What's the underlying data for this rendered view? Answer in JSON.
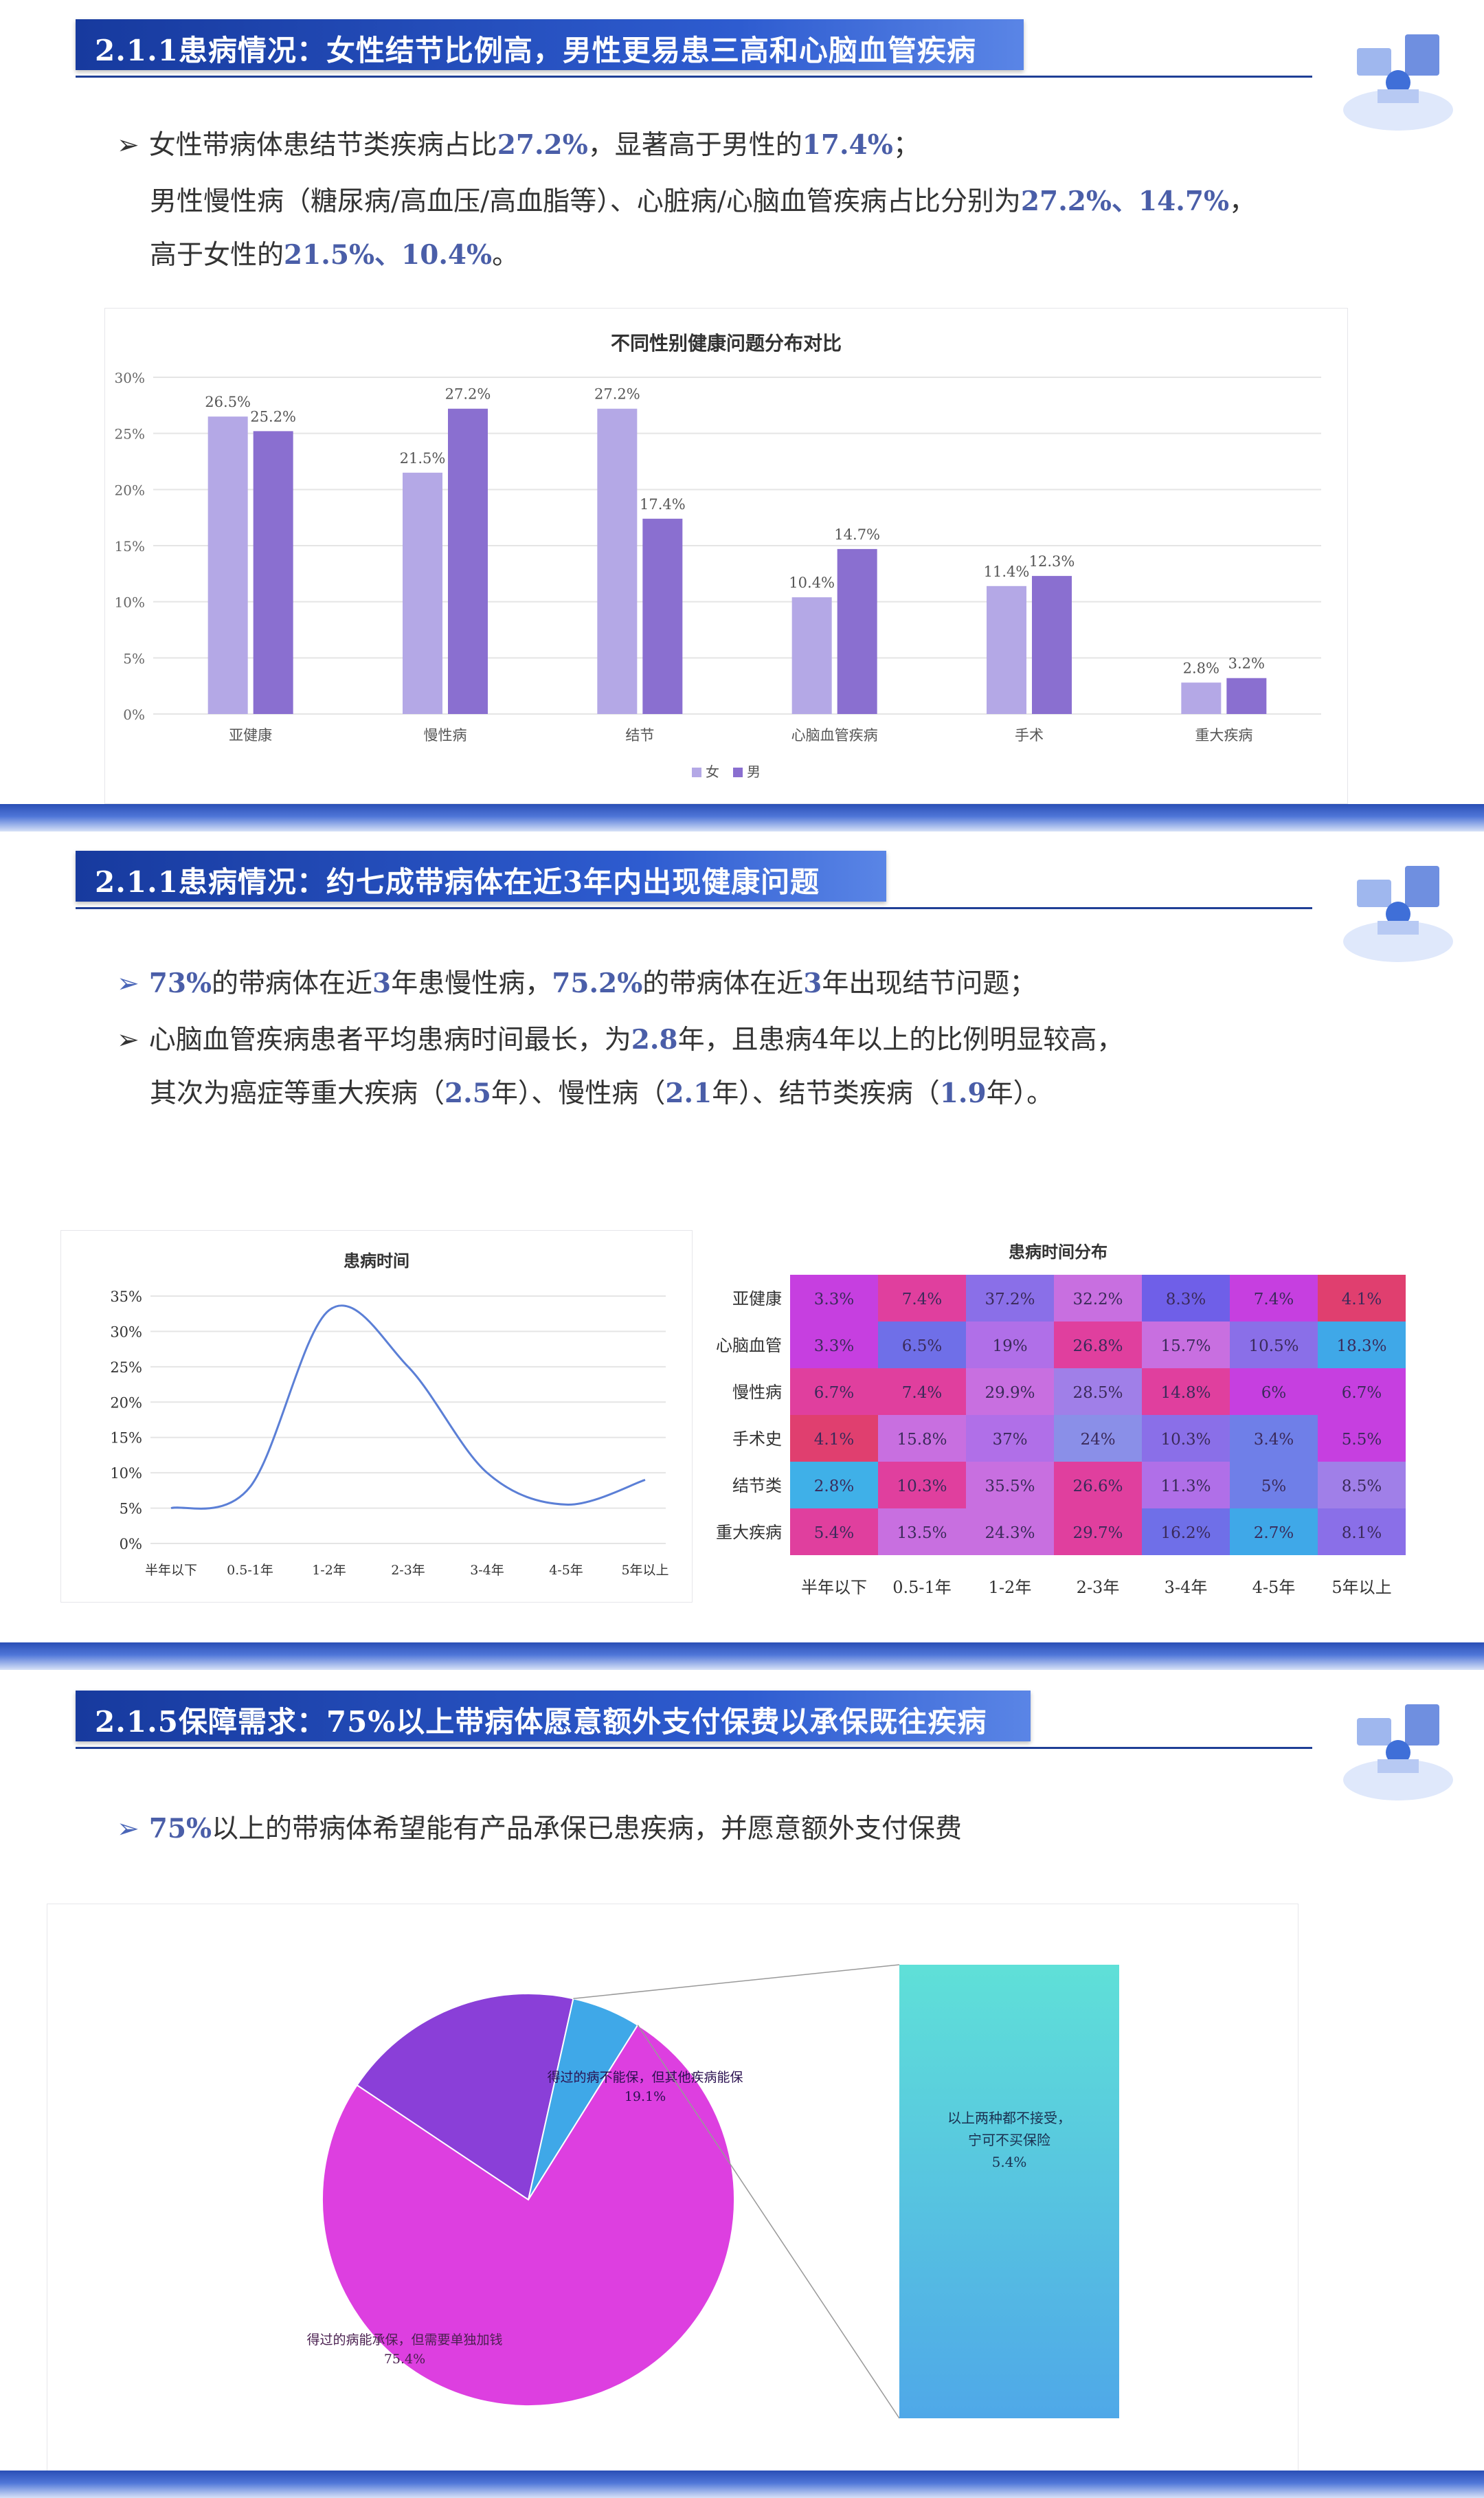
{
  "panel1": {
    "title": "2.1.1患病情况：女性结节比例高，男性更易患三高和心脑血管疾病",
    "bullets": [
      {
        "arrow": "➢",
        "segments": [
          {
            "t": "女性带病体患结节类疾病占比"
          },
          {
            "t": "27.2%",
            "hl": true
          },
          {
            "t": "，显著高于男性的"
          },
          {
            "t": "17.4%",
            "hl": true
          },
          {
            "t": "；"
          }
        ]
      },
      {
        "arrow": "",
        "segments": [
          {
            "t": "男性慢性病（糖尿病/高血压/高血脂等）、心脏病/心脑血管疾病占比分别为"
          },
          {
            "t": "27.2%、14.7%",
            "hl": true
          },
          {
            "t": "，"
          }
        ]
      },
      {
        "arrow": "",
        "segments": [
          {
            "t": "高于女性的"
          },
          {
            "t": "21.5%、10.4%",
            "hl": true
          },
          {
            "t": "。"
          }
        ]
      }
    ]
  },
  "panel2": {
    "title": "2.1.1患病情况：约七成带病体在近3年内出现健康问题",
    "bullets": [
      {
        "arrow": "➢",
        "arrow_blue": true,
        "segments": [
          {
            "t": "73%",
            "hl": true
          },
          {
            "t": "的带病体在近"
          },
          {
            "t": "3",
            "hl": true
          },
          {
            "t": "年患慢性病，"
          },
          {
            "t": "75.2%",
            "hl": true
          },
          {
            "t": "的带病体在近"
          },
          {
            "t": "3",
            "hl": true
          },
          {
            "t": "年出现结节问题；"
          }
        ]
      },
      {
        "arrow": "➢",
        "segments": [
          {
            "t": "心脑血管疾病患者平均患病时间最长，为"
          },
          {
            "t": "2.8",
            "hl": true
          },
          {
            "t": "年，且患病4年以上的比例明显较高，"
          }
        ]
      },
      {
        "arrow": "",
        "segments": [
          {
            "t": "其次为癌症等重大疾病（"
          },
          {
            "t": "2.5",
            "hl": true
          },
          {
            "t": "年）、慢性病（"
          },
          {
            "t": "2.1",
            "hl": true
          },
          {
            "t": "年）、结节类疾病（"
          },
          {
            "t": "1.9",
            "hl": true
          },
          {
            "t": "年）。"
          }
        ]
      }
    ]
  },
  "panel3": {
    "title": "2.1.5保障需求：75%以上带病体愿意额外支付保费以承保既往疾病",
    "bullets": [
      {
        "arrow": "➢",
        "arrow_blue": true,
        "segments": [
          {
            "t": "75%",
            "hl": true
          },
          {
            "t": "以上的带病体希望能有产品承保已患疾病，并愿意额外支付保费"
          }
        ]
      }
    ]
  },
  "colors": {
    "female": "#b4a8e6",
    "male": "#8a6fd0",
    "accent_blue": "#4a5ea8",
    "title_bar": "#1f46b8",
    "line": "#5b7fd6",
    "pie_main": "#dd3fe0",
    "pie_mid": "#8a3fd8",
    "pie_small": "#3fa8e8"
  },
  "chart_data": [
    {
      "type": "bar",
      "title": "不同性别健康问题分布对比",
      "categories": [
        "亚健康",
        "慢性病",
        "结节",
        "心脑血管疾病",
        "手术",
        "重大疾病"
      ],
      "series": [
        {
          "name": "女",
          "values": [
            26.5,
            21.5,
            27.2,
            10.4,
            11.4,
            2.8
          ],
          "labels": [
            "26.5%",
            "21.5%",
            "27.2%",
            "10.4%",
            "11.4%",
            "2.8%"
          ]
        },
        {
          "name": "男",
          "values": [
            25.2,
            27.2,
            17.4,
            14.7,
            12.3,
            3.2
          ],
          "labels": [
            "25.2%",
            "27.2%",
            "17.4%",
            "14.7%",
            "12.3%",
            "3.2%"
          ]
        }
      ],
      "ylim": [
        0,
        30
      ],
      "yticks": [
        "0%",
        "5%",
        "10%",
        "15%",
        "20%",
        "25%",
        "30%"
      ],
      "grid": true,
      "legend": "bottom"
    },
    {
      "type": "line",
      "title": "患病时间",
      "categories": [
        "半年以下",
        "0.5-1年",
        "1-2年",
        "2-3年",
        "3-4年",
        "4-5年",
        "5年以上"
      ],
      "values": [
        5,
        8,
        33,
        25,
        10,
        5.5,
        9
      ],
      "ylim": [
        0,
        35
      ],
      "yticks": [
        "0%",
        "5%",
        "10%",
        "15%",
        "20%",
        "25%",
        "30%",
        "35%"
      ],
      "grid": true
    },
    {
      "type": "heatmap",
      "title": "患病时间分布",
      "rows": [
        "亚健康",
        "心脑血管",
        "慢性病",
        "手术史",
        "结节类",
        "重大疾病"
      ],
      "cols": [
        "半年以下",
        "0.5-1年",
        "1-2年",
        "2-3年",
        "3-4年",
        "4-5年",
        "5年以上"
      ],
      "values": [
        [
          3.3,
          7.4,
          37.2,
          32.2,
          8.3,
          7.4,
          4.1
        ],
        [
          3.3,
          6.5,
          19,
          26.8,
          15.7,
          10.5,
          18.3
        ],
        [
          6.7,
          7.4,
          29.9,
          28.5,
          14.8,
          6,
          6.7
        ],
        [
          4.1,
          15.8,
          37,
          24,
          10.3,
          3.4,
          5.5
        ],
        [
          2.8,
          10.3,
          35.5,
          26.6,
          11.3,
          5,
          8.5
        ],
        [
          5.4,
          13.5,
          24.3,
          29.7,
          16.2,
          2.7,
          8.1
        ]
      ],
      "labels": [
        [
          "3.3%",
          "7.4%",
          "37.2%",
          "32.2%",
          "8.3%",
          "7.4%",
          "4.1%"
        ],
        [
          "3.3%",
          "6.5%",
          "19%",
          "26.8%",
          "15.7%",
          "10.5%",
          "18.3%"
        ],
        [
          "6.7%",
          "7.4%",
          "29.9%",
          "28.5%",
          "14.8%",
          "6%",
          "6.7%"
        ],
        [
          "4.1%",
          "15.8%",
          "37%",
          "24%",
          "10.3%",
          "3.4%",
          "5.5%"
        ],
        [
          "2.8%",
          "10.3%",
          "35.5%",
          "26.6%",
          "11.3%",
          "5%",
          "8.5%"
        ],
        [
          "5.4%",
          "13.5%",
          "24.3%",
          "29.7%",
          "16.2%",
          "2.7%",
          "8.1%"
        ]
      ],
      "cell_colors": [
        [
          "#c63fe0",
          "#e03f9e",
          "#8a6fe8",
          "#c86fe0",
          "#6f5fe8",
          "#c63fe0",
          "#e03f6f"
        ],
        [
          "#c63fe0",
          "#6f6fe8",
          "#b06fe8",
          "#e03f9e",
          "#c86fe0",
          "#8a6fe8",
          "#3fa8e8"
        ],
        [
          "#e03f9e",
          "#e03f9e",
          "#c86fe0",
          "#a07fe8",
          "#e03f9e",
          "#c63fe0",
          "#c63fe0"
        ],
        [
          "#e03f6f",
          "#c86fe0",
          "#b06fe8",
          "#8a8fe8",
          "#8a6fe8",
          "#6f7fe8",
          "#c63fe0"
        ],
        [
          "#3fb0e8",
          "#e03f9e",
          "#c86fe0",
          "#e03f9e",
          "#b06fe8",
          "#6f7fe8",
          "#a07fe8"
        ],
        [
          "#e03f9e",
          "#c86fe0",
          "#c86fe0",
          "#e03f9e",
          "#6f6fe8",
          "#3fa8e8",
          "#8a6fe8"
        ]
      ]
    },
    {
      "type": "pie",
      "slices": [
        {
          "label": "得过的病能承保，但需要单独加钱",
          "value": 75.4,
          "label_pct": "75.4%",
          "color": "#dd3fe0"
        },
        {
          "label": "得过的病不能保，但其他疾病能保",
          "value": 19.1,
          "label_pct": "19.1%",
          "color": "#8a3fd8"
        },
        {
          "label": "以上两种都不接受，宁可不买保险",
          "value": 5.4,
          "label_pct": "5.4%",
          "color": "#3fa8e8"
        }
      ],
      "callout": {
        "line1": "以上两种都不接受，",
        "line2": "宁可不买保险",
        "pct": "5.4%"
      }
    }
  ]
}
